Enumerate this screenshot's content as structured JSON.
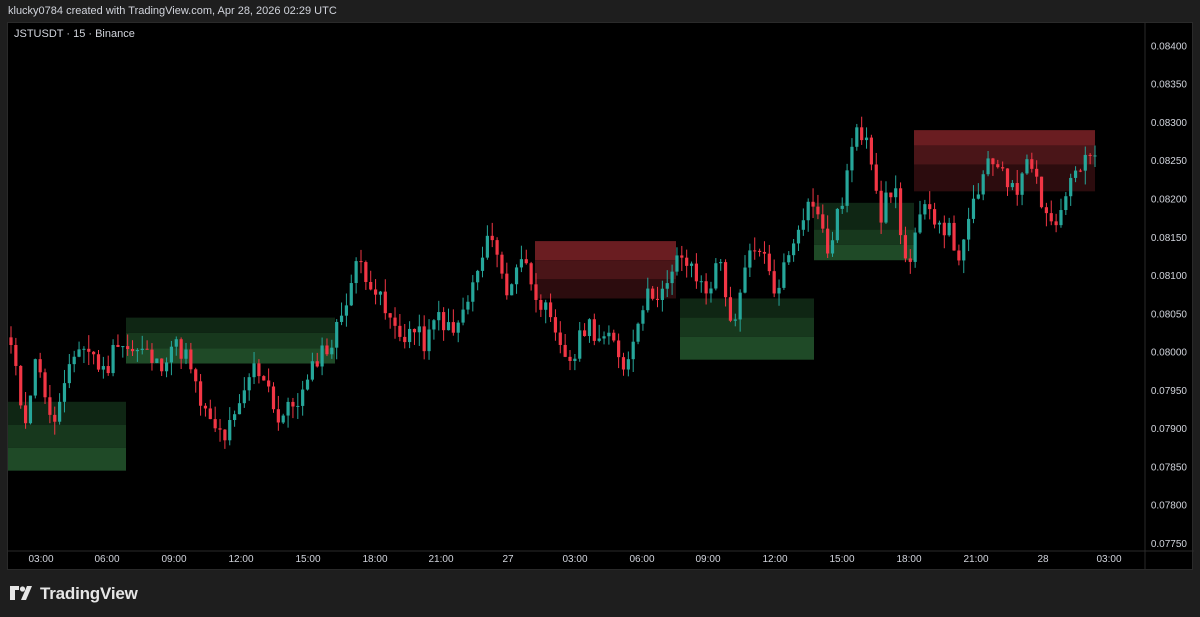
{
  "header": {
    "attribution": "klucky0784 created with TradingView.com, Apr 28, 2026 02:29 UTC"
  },
  "symbol": {
    "label": "JSTUSDT · 15 · Binance"
  },
  "footer": {
    "brand": "TradingView"
  },
  "colors": {
    "up": "#26a69a",
    "down": "#f23645",
    "bull_zone": "#1e5a2a",
    "bear_zone": "#7a1f22",
    "background": "#000000"
  },
  "chart_data": {
    "type": "candlestick",
    "symbol": "JSTUSDT",
    "interval": "15",
    "exchange": "Binance",
    "y_axis": {
      "range": [
        0.0774,
        0.0843
      ],
      "ticks": [
        "0.08400",
        "0.08350",
        "0.08300",
        "0.08250",
        "0.08200",
        "0.08150",
        "0.08100",
        "0.08050",
        "0.08000",
        "0.07950",
        "0.07900",
        "0.07850",
        "0.07800",
        "0.07750"
      ]
    },
    "x_axis": {
      "ticks": [
        "03:00",
        "06:00",
        "09:00",
        "12:00",
        "15:00",
        "18:00",
        "21:00",
        "27",
        "03:00",
        "06:00",
        "09:00",
        "12:00",
        "15:00",
        "18:00",
        "21:00",
        "28",
        "03:00"
      ]
    },
    "price_path": [
      [
        0.08005,
        0.0791,
        0.08,
        0.079,
        0.0795,
        0.0801,
        0.08,
        0.0797,
        0.0802,
        0.08,
        0.08,
        0.0798,
        0.0801
      ],
      [
        0.08,
        0.0794,
        0.079,
        0.0789,
        0.0792,
        0.0798,
        0.0797,
        0.0791,
        0.0793,
        0.0795,
        0.08,
        0.0801,
        0.0807
      ],
      [
        0.0812,
        0.0809,
        0.0805,
        0.0802,
        0.0803,
        0.0801,
        0.0805,
        0.0802,
        0.0806,
        0.0811,
        0.0816,
        0.0807,
        0.0813,
        0.0809,
        0.0805
      ],
      [
        0.08,
        0.0799,
        0.0804,
        0.0802,
        0.0801,
        0.0798,
        0.0806,
        0.0808,
        0.0808,
        0.0813,
        0.081,
        0.0808,
        0.0812
      ],
      [
        0.0802,
        0.0812,
        0.0814,
        0.0808,
        0.0812,
        0.0818,
        0.082,
        0.0813,
        0.0819,
        0.0828,
        0.0829,
        0.0818,
        0.0822,
        0.081,
        0.0818
      ],
      [
        0.0818,
        0.0816,
        0.0812,
        0.082,
        0.0824,
        0.0825,
        0.082,
        0.0827,
        0.082,
        0.0816,
        0.0822,
        0.0824,
        0.0826
      ]
    ],
    "zones": [
      {
        "type": "demand",
        "bands": [
          [
            0.07935,
            0.07905
          ],
          [
            0.07905,
            0.07875
          ],
          [
            0.07875,
            0.07845
          ]
        ]
      },
      {
        "type": "demand",
        "bands": [
          [
            0.08045,
            0.08025
          ],
          [
            0.08025,
            0.08005
          ],
          [
            0.08005,
            0.07985
          ]
        ]
      },
      {
        "type": "supply",
        "bands": [
          [
            0.08145,
            0.0812
          ],
          [
            0.0812,
            0.08095
          ],
          [
            0.08095,
            0.0807
          ]
        ]
      },
      {
        "type": "demand",
        "bands": [
          [
            0.0807,
            0.08045
          ],
          [
            0.08045,
            0.0802
          ],
          [
            0.0802,
            0.0799
          ]
        ]
      },
      {
        "type": "demand",
        "bands": [
          [
            0.08195,
            0.0816
          ],
          [
            0.0816,
            0.0814
          ],
          [
            0.0814,
            0.0812
          ]
        ]
      },
      {
        "type": "supply",
        "bands": [
          [
            0.0829,
            0.0827
          ],
          [
            0.0827,
            0.08245
          ],
          [
            0.08245,
            0.0821
          ]
        ]
      }
    ]
  }
}
